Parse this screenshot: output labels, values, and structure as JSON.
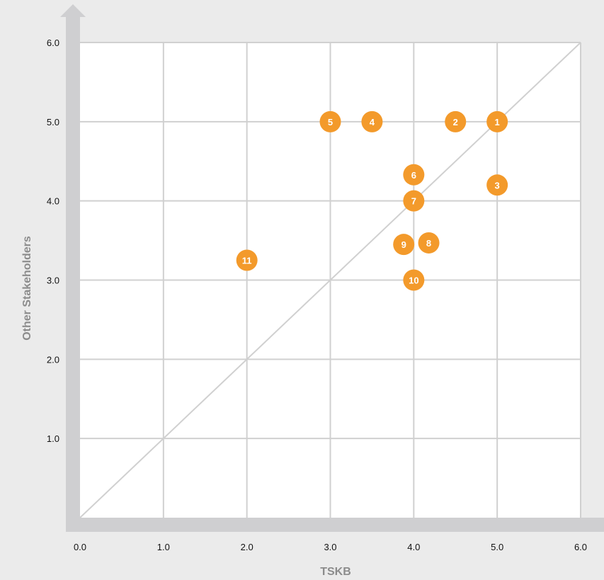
{
  "chart_data": {
    "type": "scatter",
    "xlabel": "TSKB",
    "ylabel": "Other Stakeholders",
    "xlim": [
      0,
      6
    ],
    "ylim": [
      0,
      6
    ],
    "x_ticks": [
      "0.0",
      "1.0",
      "2.0",
      "3.0",
      "4.0",
      "5.0",
      "6.0"
    ],
    "y_ticks": [
      "1.0",
      "2.0",
      "3.0",
      "4.0",
      "5.0",
      "6.0"
    ],
    "grid": true,
    "diagonal_reference_line": true,
    "points": [
      {
        "label": "1",
        "x": 5.0,
        "y": 5.0
      },
      {
        "label": "2",
        "x": 4.5,
        "y": 5.0
      },
      {
        "label": "3",
        "x": 5.0,
        "y": 4.2
      },
      {
        "label": "4",
        "x": 3.5,
        "y": 5.0
      },
      {
        "label": "5",
        "x": 3.0,
        "y": 5.0
      },
      {
        "label": "6",
        "x": 4.0,
        "y": 4.33
      },
      {
        "label": "7",
        "x": 4.0,
        "y": 4.0
      },
      {
        "label": "8",
        "x": 4.18,
        "y": 3.47
      },
      {
        "label": "9",
        "x": 3.88,
        "y": 3.45
      },
      {
        "label": "10",
        "x": 4.0,
        "y": 3.0
      },
      {
        "label": "11",
        "x": 2.0,
        "y": 3.25
      }
    ],
    "colors": {
      "point": "#f39a2b",
      "grid": "#d0d0d0",
      "axis_arrow": "#cfcfd1",
      "plot_bg": "#ffffff"
    }
  }
}
